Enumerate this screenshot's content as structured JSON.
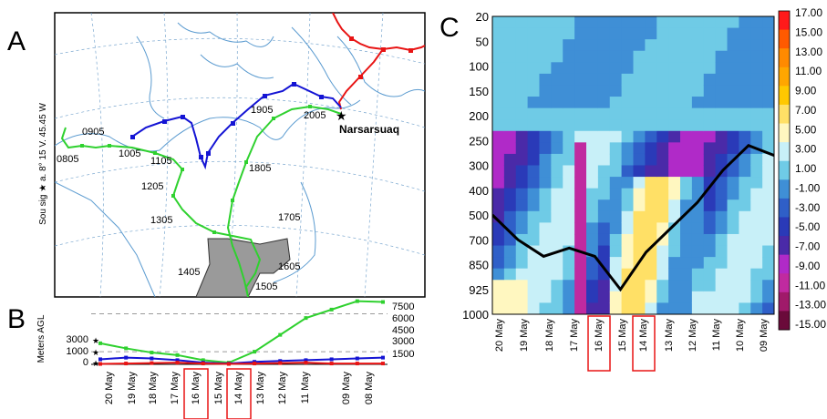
{
  "panels": {
    "a": {
      "letter": "A",
      "axis_text": "Sou sig ★ a. 8° 15 V. 45.45 W",
      "place_label": "Narsarsuaq",
      "green_labels": [
        "0905",
        "0805",
        "1005",
        "1105",
        "1205",
        "1305",
        "1405",
        "1505",
        "1605",
        "1705",
        "1805",
        "1905",
        "2005"
      ]
    },
    "b": {
      "letter": "B",
      "ylabel": "Meters AGL",
      "left_ticks": [
        "3000",
        "1000",
        "0"
      ],
      "right_ticks": [
        "7500",
        "6000",
        "4500",
        "3000",
        "1500"
      ],
      "date_labels": [
        "20 May",
        "19 May",
        "18 May",
        "17 May",
        "16 May",
        "15 May",
        "14 May",
        "13 May",
        "12 May",
        "11 May",
        "09 May",
        "08 May"
      ],
      "highlighted": [
        "16 May",
        "14 May"
      ]
    },
    "c": {
      "letter": "C",
      "pressure_levels": [
        "20",
        "50",
        "100",
        "150",
        "200",
        "250",
        "300",
        "400",
        "500",
        "700",
        "850",
        "925",
        "1000"
      ],
      "date_labels": [
        "20 May",
        "19 May",
        "18 May",
        "17 May",
        "16 May",
        "15 May",
        "14 May",
        "13 May",
        "12 May",
        "11 May",
        "10 May",
        "09 May"
      ],
      "highlighted": [
        "16 May",
        "14 May"
      ],
      "colorbar_labels": [
        "17.00",
        "15.00",
        "13.00",
        "11.00",
        "9.00",
        "7.00",
        "5.00",
        "3.00",
        "1.00",
        "-1.00",
        "-3.00",
        "-5.00",
        "-7.00",
        "-9.00",
        "-11.00",
        "-13.00",
        "-15.00"
      ],
      "colorbar_colors": [
        "#ff1a1a",
        "#ff5a00",
        "#ff8a00",
        "#ffa600",
        "#ffc800",
        "#ffe066",
        "#fff7c0",
        "#c8f0f8",
        "#6fcbe6",
        "#3f8fd6",
        "#2f5fc8",
        "#2a3ab8",
        "#4a2aa8",
        "#b02ac8",
        "#c02aa0",
        "#a01a6a",
        "#6a0a3a"
      ]
    }
  },
  "chart_data": [
    {
      "type": "line",
      "panel": "B",
      "ylabel": "Meters AGL",
      "x": [
        "20 May",
        "19 May",
        "18 May",
        "17 May",
        "16 May",
        "15 May",
        "14 May",
        "13 May",
        "12 May",
        "11 May",
        "09 May",
        "08 May"
      ],
      "series": [
        {
          "values": [
            2500,
            1900,
            1400,
            1100,
            500,
            200,
            1500,
            3500,
            5500,
            6500,
            7500,
            7400
          ],
          "color": "#2fd12f"
        },
        {
          "values": [
            600,
            800,
            700,
            500,
            200,
            100,
            300,
            400,
            500,
            600,
            700,
            800
          ],
          "color": "#1414d4"
        },
        {
          "values": [
            50,
            100,
            150,
            200,
            100,
            50,
            100,
            150,
            200,
            100,
            100,
            100
          ],
          "color": "#e81414"
        }
      ],
      "reference_lines": [
        6000,
        1500
      ]
    },
    {
      "type": "heatmap",
      "panel": "C",
      "x": [
        "20 May",
        "19 May",
        "18 May",
        "17 May",
        "16 May",
        "15 May",
        "14 May",
        "13 May",
        "12 May",
        "11 May",
        "10 May",
        "09 May"
      ],
      "y": [
        "20",
        "50",
        "100",
        "150",
        "200",
        "250",
        "300",
        "400",
        "500",
        "700",
        "850",
        "925",
        "1000"
      ],
      "colorbar_range": [
        -15,
        17
      ],
      "overlay_line": {
        "x": [
          "20 May",
          "19 May",
          "18 May",
          "17 May",
          "16 May",
          "15 May",
          "14 May",
          "13 May",
          "12 May",
          "11 May",
          "10 May",
          "09 May"
        ],
        "y": [
          500,
          700,
          800,
          750,
          800,
          925,
          775,
          600,
          450,
          320,
          260,
          280
        ]
      }
    }
  ]
}
